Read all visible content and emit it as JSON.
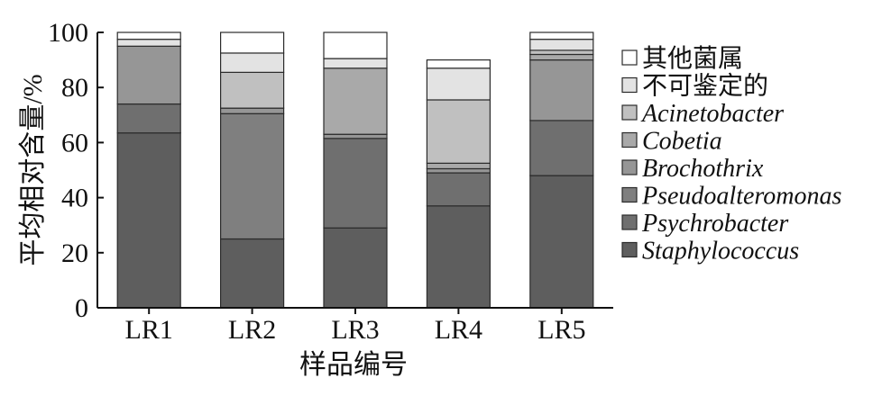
{
  "chart_data": {
    "type": "bar",
    "stacked": true,
    "xlabel": "样品编号",
    "ylabel": "平均相对含量/%",
    "ylim": [
      0,
      100
    ],
    "yticks": [
      0,
      20,
      40,
      60,
      80,
      100
    ],
    "categories": [
      "LR1",
      "LR2",
      "LR3",
      "LR4",
      "LR5"
    ],
    "legend_position": "right",
    "grid": false,
    "series": [
      {
        "name": "Staphylococcus",
        "italic": true,
        "color": "#5e5e5e",
        "values": [
          63.5,
          25,
          29,
          37,
          48
        ]
      },
      {
        "name": "Psychrobacter",
        "italic": true,
        "color": "#6f6f6f",
        "values": [
          10.5,
          0,
          32.5,
          12,
          20
        ]
      },
      {
        "name": "Pseudoalteromonas",
        "italic": true,
        "color": "#7f7f7f",
        "values": [
          0,
          45.5,
          0,
          0,
          0
        ]
      },
      {
        "name": "Brochothrix",
        "italic": true,
        "color": "#969696",
        "values": [
          21,
          2,
          1.5,
          1.5,
          22
        ]
      },
      {
        "name": "Cobetia",
        "italic": true,
        "color": "#a9a9a9",
        "values": [
          0,
          0,
          24,
          2,
          2
        ]
      },
      {
        "name": "Acinetobacter",
        "italic": true,
        "color": "#c0c0c0",
        "values": [
          0,
          13,
          0,
          23,
          1.5
        ]
      },
      {
        "name": "不可鉴定的",
        "italic": false,
        "color": "#e3e3e3",
        "values": [
          2.5,
          7,
          3.5,
          11.5,
          4
        ]
      },
      {
        "name": "其他菌属",
        "italic": false,
        "color": "#ffffff",
        "values": [
          2.5,
          7.5,
          9.5,
          3,
          2.5
        ]
      }
    ]
  }
}
